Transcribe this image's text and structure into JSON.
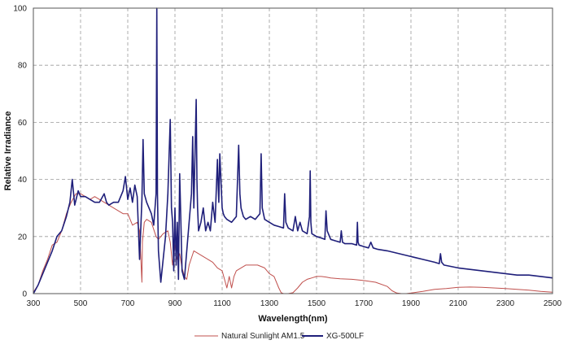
{
  "chart_data": {
    "type": "line",
    "title": "",
    "xlabel": "Wavelength(nm)",
    "ylabel": "Relative Irradiance",
    "xlim": [
      300,
      2500
    ],
    "ylim": [
      0,
      100
    ],
    "x_ticks": [
      300,
      500,
      700,
      900,
      1100,
      1300,
      1500,
      1700,
      1900,
      2100,
      2300,
      2500
    ],
    "y_ticks": [
      0,
      20,
      40,
      60,
      80,
      100
    ],
    "x_tick_labels": [
      "300",
      "500",
      "700",
      "900",
      "1100",
      "1300",
      "1500",
      "1700",
      "1900",
      "2100",
      "2300",
      "2500"
    ],
    "y_tick_labels": [
      "0",
      "20",
      "40",
      "60",
      "80",
      "100"
    ],
    "grid": true,
    "legend_position": "bottom-center",
    "series": [
      {
        "name": "Natural Sunlight AM1.5",
        "color": "#c0504d",
        "x": [
          300,
          320,
          340,
          360,
          380,
          400,
          420,
          440,
          460,
          480,
          500,
          520,
          540,
          560,
          580,
          600,
          620,
          640,
          660,
          680,
          700,
          710,
          720,
          740,
          750,
          760,
          762,
          770,
          780,
          800,
          820,
          830,
          850,
          870,
          880,
          890,
          900,
          910,
          920,
          930,
          940,
          950,
          960,
          980,
          1000,
          1020,
          1040,
          1060,
          1080,
          1100,
          1110,
          1120,
          1130,
          1140,
          1150,
          1160,
          1180,
          1200,
          1220,
          1250,
          1280,
          1300,
          1320,
          1340,
          1350,
          1360,
          1380,
          1400,
          1420,
          1440,
          1460,
          1480,
          1500,
          1520,
          1540,
          1560,
          1600,
          1650,
          1700,
          1750,
          1800,
          1820,
          1840,
          1860,
          1880,
          1900,
          1950,
          2000,
          2050,
          2100,
          2150,
          2200,
          2250,
          2300,
          2350,
          2400,
          2450,
          2500
        ],
        "y": [
          0.5,
          3,
          8,
          12,
          17,
          18,
          22,
          28,
          32,
          35,
          35,
          34,
          33,
          34,
          33,
          32,
          31,
          30,
          29,
          28,
          28,
          26,
          24,
          25,
          22,
          4,
          18,
          25,
          26,
          25,
          20,
          19,
          21,
          22,
          18,
          10,
          17,
          12,
          14,
          9,
          6,
          5,
          10,
          15,
          14,
          13,
          12,
          11,
          9,
          8,
          5,
          2,
          6,
          2,
          6,
          8,
          9,
          10,
          10,
          10,
          9,
          7,
          6,
          2,
          0.3,
          0,
          0,
          0.3,
          2,
          4,
          5,
          5.5,
          6,
          6,
          5.8,
          5.5,
          5.2,
          5,
          4.6,
          4,
          2.5,
          1,
          0.2,
          0,
          0,
          0.2,
          0.8,
          1.5,
          1.8,
          2.2,
          2.3,
          2.2,
          2,
          1.8,
          1.5,
          1.2,
          0.8,
          0.5
        ]
      },
      {
        "name": "XG-500LF",
        "color": "#1f1f7a",
        "x": [
          300,
          320,
          340,
          360,
          380,
          400,
          420,
          440,
          455,
          465,
          475,
          490,
          500,
          520,
          540,
          560,
          580,
          600,
          610,
          620,
          640,
          660,
          680,
          690,
          700,
          710,
          720,
          730,
          740,
          750,
          760,
          765,
          770,
          780,
          790,
          800,
          810,
          820,
          823,
          826,
          830,
          840,
          860,
          870,
          880,
          885,
          890,
          895,
          900,
          905,
          910,
          915,
          920,
          925,
          930,
          940,
          950,
          960,
          970,
          975,
          980,
          990,
          993,
          996,
          1000,
          1010,
          1020,
          1030,
          1040,
          1050,
          1060,
          1070,
          1080,
          1083,
          1086,
          1090,
          1100,
          1105,
          1110,
          1120,
          1140,
          1160,
          1170,
          1175,
          1180,
          1190,
          1200,
          1220,
          1240,
          1260,
          1265,
          1270,
          1280,
          1300,
          1320,
          1340,
          1360,
          1365,
          1370,
          1380,
          1400,
          1410,
          1420,
          1430,
          1440,
          1460,
          1470,
          1473,
          1476,
          1480,
          1500,
          1520,
          1535,
          1540,
          1545,
          1560,
          1580,
          1600,
          1605,
          1610,
          1620,
          1650,
          1670,
          1673,
          1676,
          1680,
          1700,
          1720,
          1730,
          1740,
          1760,
          1800,
          1850,
          1900,
          1950,
          2000,
          2020,
          2025,
          2030,
          2040,
          2100,
          2150,
          2200,
          2250,
          2300,
          2350,
          2400,
          2450,
          2500
        ],
        "y": [
          0,
          3,
          7,
          11,
          15,
          20,
          22,
          27,
          32,
          40,
          31,
          36,
          34,
          34,
          33,
          32,
          32,
          35,
          32,
          31,
          32,
          32,
          36,
          41,
          33,
          37,
          32,
          38,
          34,
          12,
          33,
          54,
          35,
          32,
          30,
          28,
          24,
          35,
          100,
          35,
          15,
          4,
          20,
          35,
          61,
          30,
          25,
          8,
          30,
          10,
          25,
          5,
          42,
          25,
          8,
          5,
          15,
          25,
          35,
          55,
          30,
          68,
          40,
          30,
          22,
          25,
          30,
          22,
          25,
          22,
          32,
          25,
          47,
          38,
          32,
          49,
          30,
          28,
          27,
          26,
          25,
          27,
          52,
          35,
          30,
          27,
          26,
          27,
          26,
          28,
          49,
          30,
          26,
          25,
          24,
          23.5,
          23,
          35,
          25,
          23,
          22,
          27,
          22,
          25,
          22,
          21,
          27,
          43,
          25,
          21,
          20,
          19.5,
          19,
          29,
          22,
          19,
          18.5,
          18,
          22,
          18,
          17.5,
          17.5,
          17,
          25,
          18,
          17,
          16.5,
          16,
          18,
          16,
          15.5,
          15,
          14,
          13,
          12,
          11,
          10.5,
          14,
          11,
          10,
          9,
          8.5,
          8,
          7.5,
          7,
          6.5,
          6.5,
          6,
          5.5
        ]
      }
    ]
  }
}
